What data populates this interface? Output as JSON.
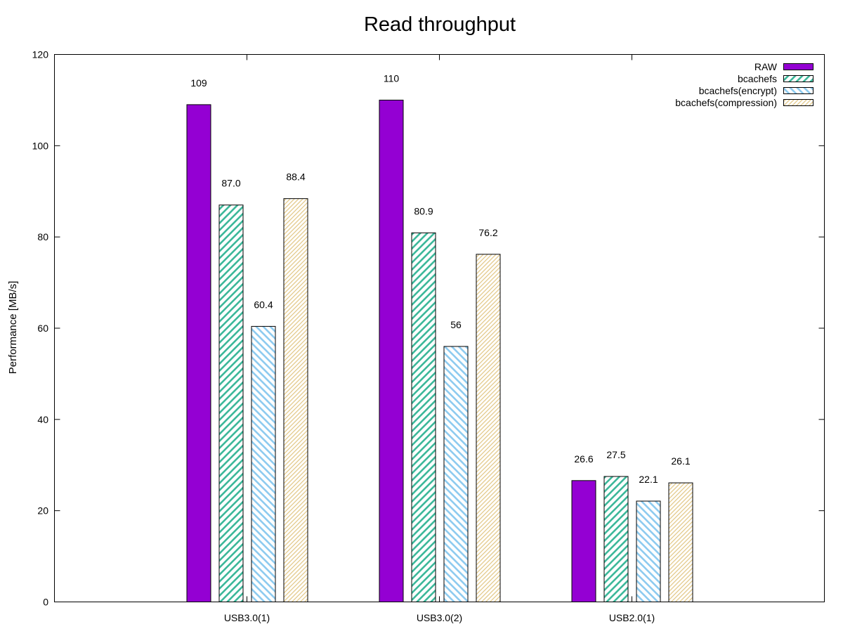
{
  "chart_data": {
    "type": "bar",
    "title": "Read throughput",
    "xlabel": "",
    "ylabel": "Performance [MB/s]",
    "ylim": [
      0,
      120
    ],
    "yticks": [
      0,
      20,
      40,
      60,
      80,
      100,
      120
    ],
    "grid": false,
    "legend_position": "top-right",
    "categories": [
      "USB3.0(1)",
      "USB3.0(2)",
      "USB2.0(1)"
    ],
    "series": [
      {
        "name": "RAW",
        "values": [
          109,
          110,
          26.6
        ],
        "labels": [
          "109",
          "110",
          "26.6"
        ],
        "color": "#9400d3",
        "fill": "solid"
      },
      {
        "name": "bcachefs",
        "values": [
          87.0,
          80.9,
          27.5
        ],
        "labels": [
          "87.0",
          "80.9",
          "27.5"
        ],
        "color": "#3cb89a",
        "fill": "hatch-back"
      },
      {
        "name": "bcachefs(encrypt)",
        "values": [
          60.4,
          56,
          22.1
        ],
        "labels": [
          "60.4",
          "56",
          "22.1"
        ],
        "color": "#8ecbf0",
        "fill": "hatch-forward"
      },
      {
        "name": "bcachefs(compression)",
        "values": [
          88.4,
          76.2,
          26.1
        ],
        "labels": [
          "88.4",
          "76.2",
          "26.1"
        ],
        "color": "#e3c98a",
        "fill": "hatch-back-fine"
      }
    ]
  }
}
